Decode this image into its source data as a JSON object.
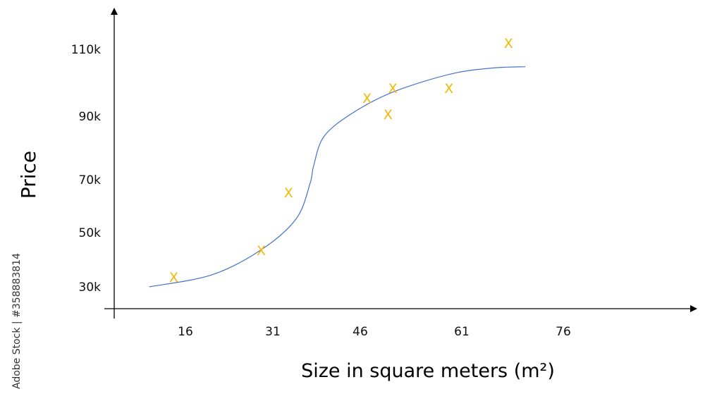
{
  "chart_data": {
    "type": "scatter",
    "title": "",
    "xlabel": "Size in square meters (m²)",
    "ylabel": "Price",
    "x_ticks": [
      16,
      31,
      46,
      61,
      76
    ],
    "y_ticks": [
      {
        "value": 30,
        "label": "30k"
      },
      {
        "value": 50,
        "label": "50k"
      },
      {
        "value": 70,
        "label": "70k"
      },
      {
        "value": 90,
        "label": "90k"
      },
      {
        "value": 110,
        "label": "110k"
      }
    ],
    "y_unit": "thousands",
    "grid": false,
    "legend": "none",
    "marker": "X",
    "marker_color": "#F2B705",
    "curve_color": "#4472C4",
    "points": [
      {
        "x": 14,
        "y": 33.6
      },
      {
        "x": 29,
        "y": 43.5
      },
      {
        "x": 33.7,
        "y": 65.2
      },
      {
        "x": 47,
        "y": 95.5
      },
      {
        "x": 50.8,
        "y": 98.4
      },
      {
        "x": 50.1,
        "y": 90.6
      },
      {
        "x": 59.1,
        "y": 98.4
      },
      {
        "x": 67.9,
        "y": 111.9
      }
    ],
    "fit_curve": [
      {
        "x": 9.8,
        "y": 30
      },
      {
        "x": 20.5,
        "y": 34.4
      },
      {
        "x": 28.9,
        "y": 43.5
      },
      {
        "x": 35,
        "y": 55.2
      },
      {
        "x": 37.4,
        "y": 68.7
      },
      {
        "x": 38,
        "y": 74.4
      },
      {
        "x": 39.8,
        "y": 83.7
      },
      {
        "x": 44.7,
        "y": 91
      },
      {
        "x": 50.9,
        "y": 97.3
      },
      {
        "x": 59.3,
        "y": 102.6
      },
      {
        "x": 65.4,
        "y": 104.4
      },
      {
        "x": 70.4,
        "y": 104.8
      }
    ]
  },
  "watermark": "Adobe Stock | #358883814"
}
